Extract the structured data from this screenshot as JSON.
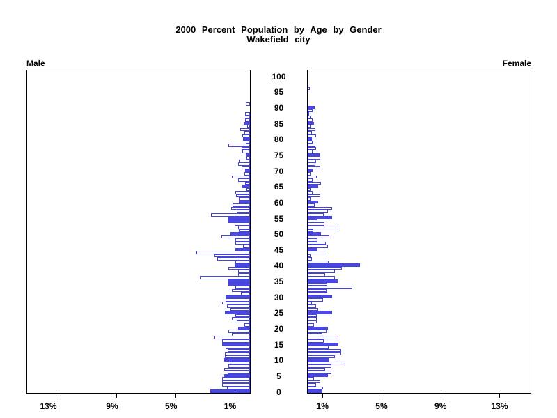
{
  "title": {
    "line1": "2000 Percent Population by Age by Gender",
    "line2": "Wakefield city"
  },
  "panels": {
    "male_label": "Male",
    "female_label": "Female"
  },
  "colors": {
    "bar_outline": "#4444dd",
    "bar_fill": "#4a4ae2",
    "axis": "#000000",
    "background": "#ffffff"
  },
  "x_axis": {
    "male_tick_labels": [
      "13%",
      "9%",
      "5%",
      "1%"
    ],
    "male_tick_values": [
      13,
      9,
      5,
      1
    ],
    "female_tick_labels": [
      "1%",
      "5%",
      "9%",
      "13%"
    ],
    "female_tick_values": [
      1,
      5,
      9,
      13
    ],
    "max_percent": 15.1
  },
  "age_axis": {
    "tick_ages": [
      0,
      5,
      10,
      15,
      20,
      25,
      30,
      35,
      40,
      45,
      50,
      55,
      60,
      65,
      70,
      75,
      80,
      85,
      90,
      95,
      100
    ]
  },
  "chart_data": {
    "type": "bar",
    "orientation": "horizontal-pyramid",
    "title": "2000 Percent Population by Age by Gender",
    "subtitle": "Wakefield city",
    "xlabel_left": "Male",
    "xlabel_right": "Female",
    "unit": "% of population",
    "age_min": 0,
    "age_max": 100,
    "x_max": 15.1,
    "highlight_rule": "bars for ages divisible by 5 are drawn solid (filled); other single-year ages are hollow outlines",
    "extra_filled_ages_male": [
      34,
      54
    ],
    "series": [
      {
        "name": "Male",
        "values": [
          2.69,
          1.55,
          1.9,
          1.9,
          1.9,
          1.75,
          1.53,
          1.75,
          1.44,
          1.38,
          1.75,
          1.72,
          1.72,
          1.52,
          1.64,
          1.9,
          1.9,
          2.42,
          1.22,
          1.48,
          0.81,
          0.39,
          0.9,
          1.25,
          0.97,
          1.72,
          1.3,
          1.55,
          1.9,
          1.67,
          1.67,
          0.63,
          1.25,
          1.0,
          1.48,
          1.44,
          3.41,
          0.78,
          0.78,
          1.48,
          1.02,
          1.0,
          2.23,
          2.42,
          3.64,
          0.98,
          0.47,
          0.98,
          0.98,
          1.95,
          1.33,
          0.75,
          0.81,
          1.02,
          1.48,
          1.48,
          2.66,
          0.9,
          1.28,
          1.2,
          0.75,
          0.75,
          0.94,
          0.97,
          0.25,
          0.52,
          0.35,
          0.8,
          1.25,
          0.4,
          0.31,
          0.55,
          0.78,
          0.75,
          0.25,
          0.3,
          0.5,
          0.55,
          1.48,
          0.3,
          0.47,
          0.5,
          0.39,
          0.66,
          0.2,
          0.44,
          0.33,
          0.3,
          0.33,
          0,
          0,
          0.28,
          0,
          0,
          0,
          0,
          0,
          0,
          0,
          0,
          0
        ]
      },
      {
        "name": "Female",
        "values": [
          0.97,
          1.05,
          0.58,
          0.84,
          0.42,
          1.36,
          1.6,
          1.16,
          1.6,
          2.56,
          1.4,
          1.83,
          2.25,
          2.25,
          1.4,
          2.06,
          1.1,
          2.06,
          1.0,
          1.28,
          1.36,
          0.42,
          0.63,
          0.63,
          0.63,
          1.64,
          0.7,
          0.58,
          0.3,
          1.05,
          1.63,
          1.33,
          1.28,
          3.0,
          1.33,
          2.03,
          1.83,
          1.2,
          1.85,
          2.3,
          3.52,
          1.4,
          0.27,
          0.19,
          1.13,
          0.66,
          1.36,
          1.25,
          0.66,
          1.44,
          0.89,
          0.4,
          2.06,
          1.13,
          0.65,
          1.63,
          1.1,
          1.36,
          1.63,
          0.47,
          0.69,
          0.19,
          0.84,
          0.31,
          0.19,
          0.73,
          0.89,
          0.34,
          0.63,
          0.2,
          0.34,
          0.86,
          0.53,
          0.58,
          0.84,
          0.78,
          0.31,
          0.58,
          0.5,
          0.34,
          0.3,
          0.58,
          0.27,
          0.53,
          0.19,
          0.42,
          0.34,
          0.19,
          0.11,
          0.34,
          0.47,
          0,
          0,
          0,
          0,
          0,
          0.15,
          0,
          0,
          0,
          0
        ]
      }
    ]
  }
}
